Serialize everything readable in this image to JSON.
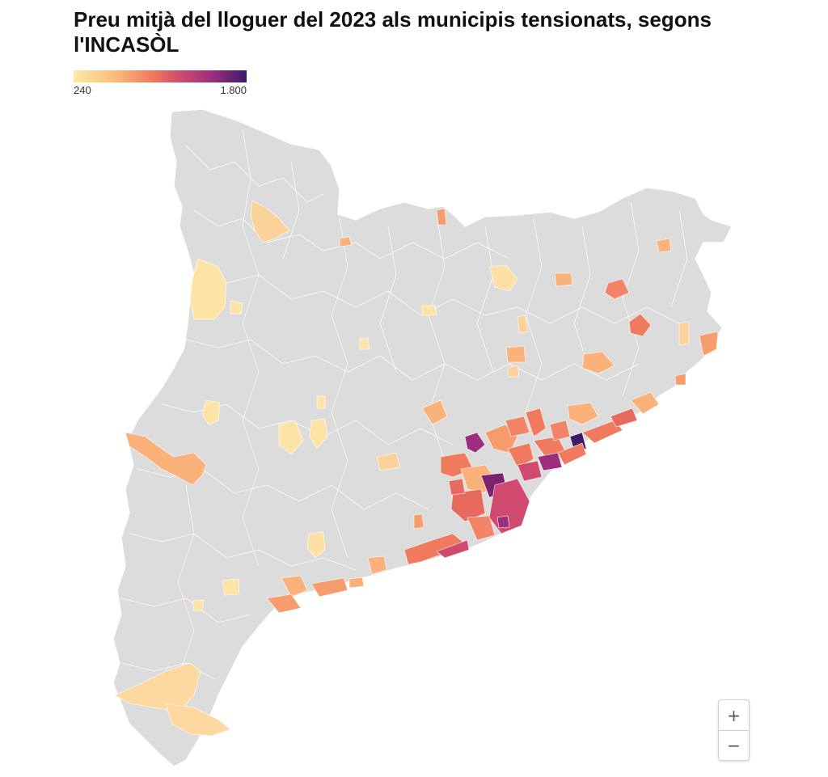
{
  "title": "Preu mitjà del lloguer del 2023 als municipis tensionats, segons l'INCASÒL",
  "legend": {
    "min_label": "240",
    "max_label": "1.800",
    "colors": [
      "#fde9a5",
      "#fbb97a",
      "#f07a5d",
      "#cf4a6e",
      "#9c2e7e",
      "#3b1a6b"
    ]
  },
  "map": {
    "base_color": "#dcdcdc",
    "border_color": "#ffffff"
  },
  "zoom": {
    "in_label": "+",
    "out_label": "−"
  }
}
